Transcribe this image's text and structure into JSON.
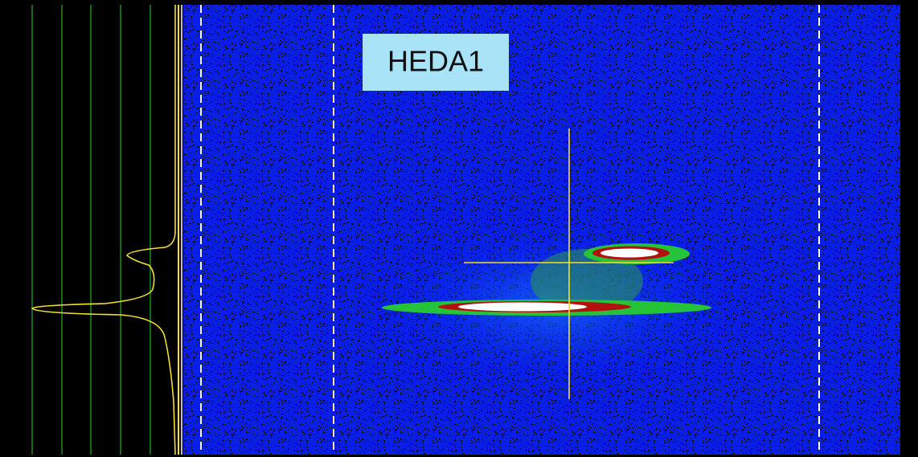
{
  "label": "HEDA1"
}
